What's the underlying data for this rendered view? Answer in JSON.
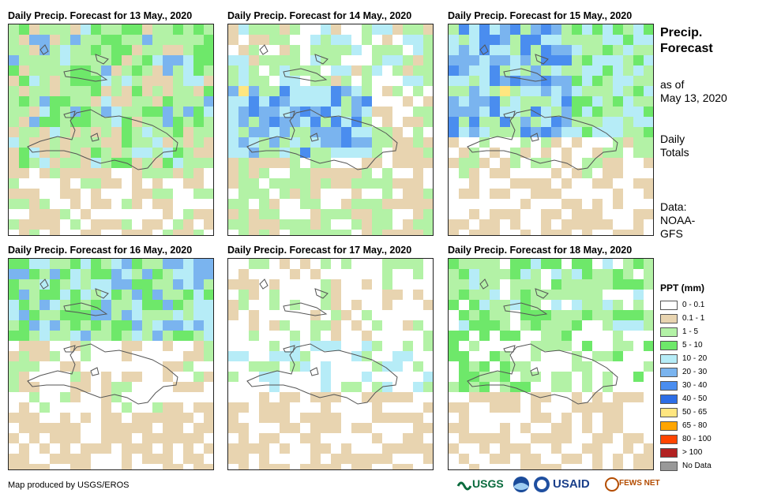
{
  "panels": [
    {
      "title": "Daily Precip. Forecast for 13 May., 2020"
    },
    {
      "title": "Daily Precip. Forecast for 14 May., 2020"
    },
    {
      "title": "Daily Precip. Forecast for 15 May., 2020"
    },
    {
      "title": "Daily Precip. Forecast for 16 May., 2020"
    },
    {
      "title": "Daily Precip. Forecast for 17 May., 2020"
    },
    {
      "title": "Daily Precip. Forecast for 18 May., 2020"
    }
  ],
  "sidebar": {
    "title_line1": "Precip.",
    "title_line2": "Forecast",
    "asof_line1": "as of",
    "asof_line2": "May 13, 2020",
    "totals_line1": "Daily",
    "totals_line2": "Totals",
    "data_line1": "Data:",
    "data_line2": "NOAA-",
    "data_line3": "GFS"
  },
  "legend": {
    "title": "PPT (mm)",
    "items": [
      {
        "label": "0 - 0.1",
        "color": "#ffffff"
      },
      {
        "label": "0.1 - 1",
        "color": "#e8d4b0"
      },
      {
        "label": "1 - 5",
        "color": "#b3f2a6"
      },
      {
        "label": "5 - 10",
        "color": "#6ee86a"
      },
      {
        "label": "10 - 20",
        "color": "#b6ecf7"
      },
      {
        "label": "20 - 30",
        "color": "#7ab4ef"
      },
      {
        "label": "30 - 40",
        "color": "#4a8def"
      },
      {
        "label": "40 - 50",
        "color": "#2d6ee6"
      },
      {
        "label": "50 - 65",
        "color": "#ffe680"
      },
      {
        "label": "65 - 80",
        "color": "#ffa500"
      },
      {
        "label": "80 - 100",
        "color": "#ff4500"
      },
      {
        "label": "> 100",
        "color": "#b22222"
      },
      {
        "label": "No Data",
        "color": "#999999"
      }
    ]
  },
  "credit": "Map produced by USGS/EROS",
  "logos": {
    "usgs": "USGS",
    "usaid": "USAID",
    "fewsnet": "FEWS NET"
  }
}
